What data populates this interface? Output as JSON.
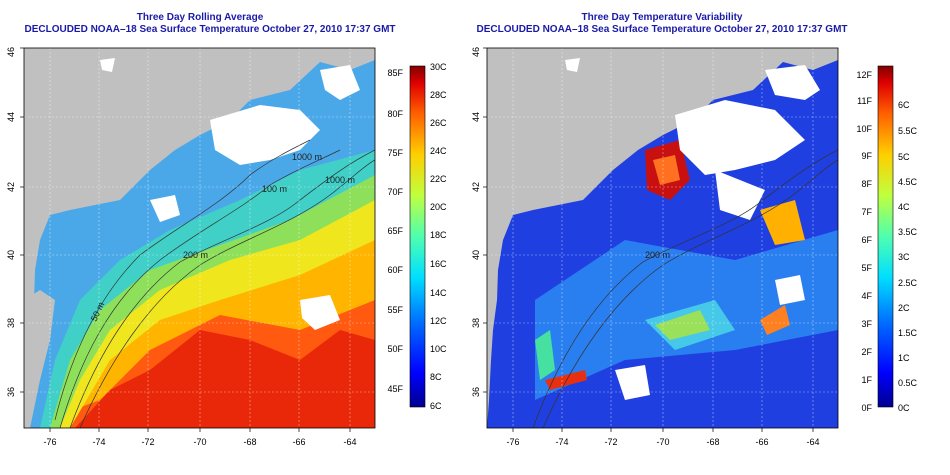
{
  "left_panel": {
    "title": "Three Day Rolling Average",
    "subtitle": "DECLOUDED NOAA–18 Sea Surface Temperature October 27, 2010 17:37 GMT",
    "lon_ticks": [
      "-76",
      "-74",
      "-72",
      "-70",
      "-68",
      "-66",
      "-64"
    ],
    "lat_ticks": [
      "36",
      "38",
      "40",
      "42",
      "44",
      "46"
    ],
    "contour_labels": [
      "1000 m",
      "100 m",
      "1000 m",
      "200 m",
      "50 m"
    ],
    "colorbar": {
      "fahrenheit_labels": [
        "85F",
        "80F",
        "75F",
        "70F",
        "65F",
        "60F",
        "55F",
        "50F",
        "45F"
      ],
      "celsius_labels": [
        "30C",
        "28C",
        "26C",
        "24C",
        "22C",
        "20C",
        "18C",
        "16C",
        "14C",
        "12C",
        "10C",
        "8C",
        "6C"
      ]
    }
  },
  "right_panel": {
    "title": "Three Day Temperature Variability",
    "subtitle": "DECLOUDED NOAA–18 Sea Surface Temperature October 27, 2010 17:37 GMT",
    "lon_ticks": [
      "-76",
      "-74",
      "-72",
      "-70",
      "-68",
      "-66",
      "-64"
    ],
    "lat_ticks": [
      "36",
      "38",
      "40",
      "42",
      "44",
      "46"
    ],
    "contour_labels": [
      "200 m"
    ],
    "colorbar": {
      "fahrenheit_labels": [
        "12F",
        "11F",
        "10F",
        "9F",
        "8F",
        "7F",
        "6F",
        "5F",
        "4F",
        "3F",
        "2F",
        "1F",
        "0F"
      ],
      "celsius_labels": [
        "6C",
        "5.5C",
        "5C",
        "4.5C",
        "4C",
        "3.5C",
        "3C",
        "2.5C",
        "2C",
        "1.5C",
        "1C",
        "0.5C",
        "0C"
      ]
    }
  },
  "colors": {
    "title": "#1a1aa8",
    "land": "#c0c0c0",
    "cloud": "#ffffff",
    "palette": [
      "#00008f",
      "#0000ff",
      "#006fff",
      "#00dfff",
      "#4fffaf",
      "#bfff3f",
      "#ffcf00",
      "#ff6000",
      "#df0000",
      "#800000"
    ]
  }
}
